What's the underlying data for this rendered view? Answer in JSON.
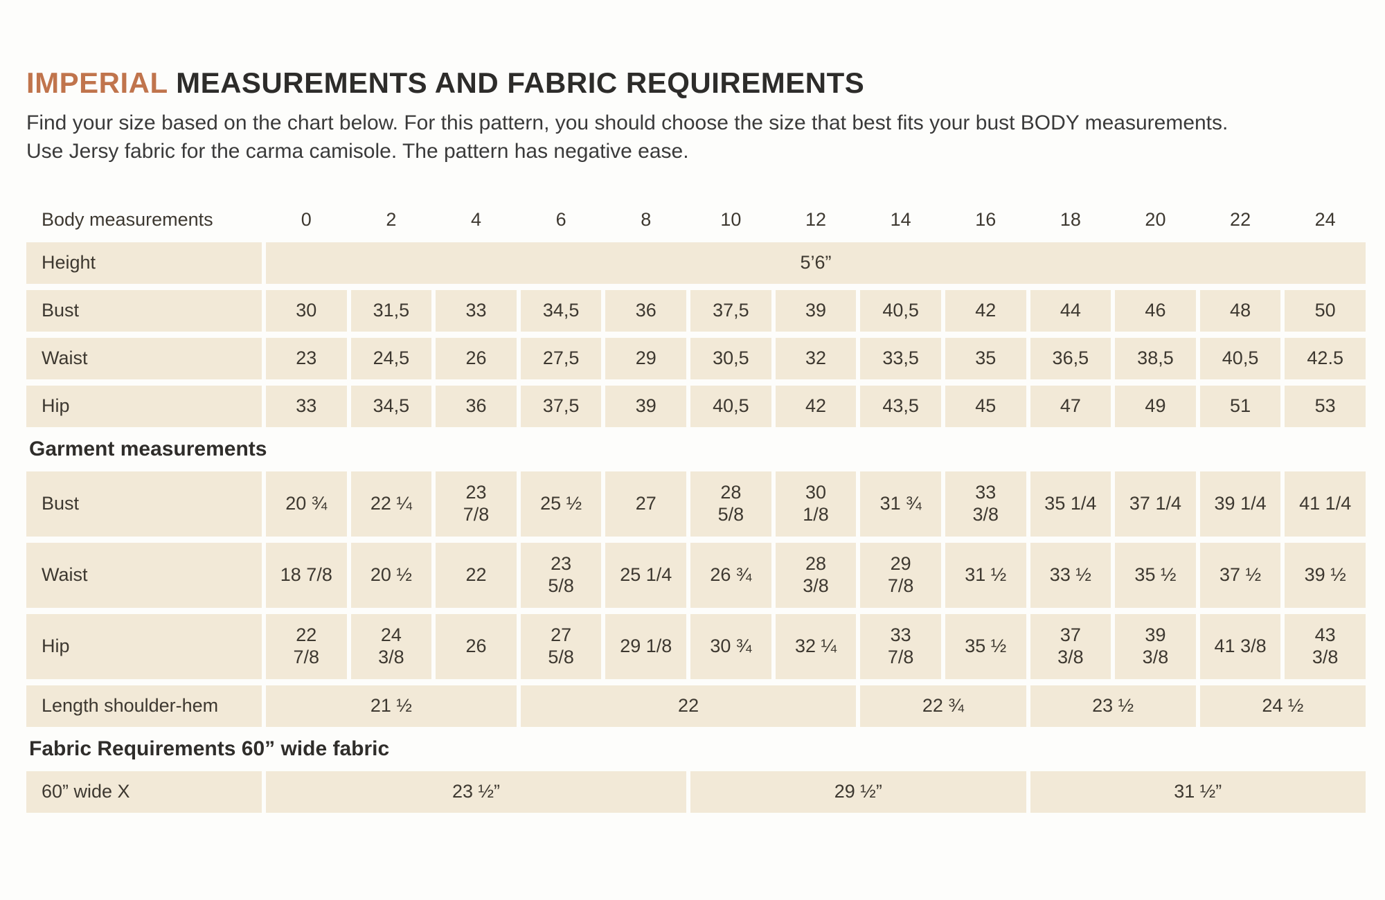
{
  "page": {
    "title_highlight": "IMPERIAL",
    "title_rest": " MEASUREMENTS AND FABRIC REQUIREMENTS",
    "subtitle_line1": "Find your size based on the chart below. For this pattern, you should choose the size that best fits your bust BODY measurements.",
    "subtitle_line2": "Use Jersy fabric for the carma camisole. The pattern has negative ease."
  },
  "colors": {
    "accent": "#c0744c",
    "cell_background": "#f2e9d7",
    "text": "#3d3830"
  },
  "table": {
    "header_label": "Body measurements",
    "sizes": [
      "0",
      "2",
      "4",
      "6",
      "8",
      "10",
      "12",
      "14",
      "16",
      "18",
      "20",
      "22",
      "24"
    ],
    "body_rows": [
      {
        "label": "Height",
        "span_value": "5’6”"
      },
      {
        "label": "Bust",
        "values": [
          "30",
          "31,5",
          "33",
          "34,5",
          "36",
          "37,5",
          "39",
          "40,5",
          "42",
          "44",
          "46",
          "48",
          "50"
        ]
      },
      {
        "label": "Waist",
        "values": [
          "23",
          "24,5",
          "26",
          "27,5",
          "29",
          "30,5",
          "32",
          "33,5",
          "35",
          "36,5",
          "38,5",
          "40,5",
          "42.5"
        ]
      },
      {
        "label": "Hip",
        "values": [
          "33",
          "34,5",
          "36",
          "37,5",
          "39",
          "40,5",
          "42",
          "43,5",
          "45",
          "47",
          "49",
          "51",
          "53"
        ]
      }
    ],
    "garment_heading": "Garment measurements",
    "garment_rows": [
      {
        "label": "Bust",
        "values": [
          "20 ¾",
          "22 ¼",
          "23\n7/8",
          "25 ½",
          "27",
          "28\n5/8",
          "30\n1/8",
          "31 ¾",
          "33\n3/8",
          "35 1/4",
          "37 1/4",
          "39 1/4",
          "41 1/4"
        ]
      },
      {
        "label": "Waist",
        "values": [
          "18 7/8",
          "20 ½",
          "22",
          "23\n5/8",
          "25 1/4",
          "26 ¾",
          "28\n3/8",
          "29\n7/8",
          "31 ½",
          "33 ½",
          "35 ½",
          "37 ½",
          "39 ½"
        ]
      },
      {
        "label": "Hip",
        "values": [
          "22\n7/8",
          "24\n3/8",
          "26",
          "27\n5/8",
          "29 1/8",
          "30 ¾",
          "32 ¼",
          "33\n7/8",
          "35 ½",
          "37\n3/8",
          "39\n3/8",
          "41 3/8",
          "43\n3/8"
        ]
      }
    ],
    "length_row": {
      "label": "Length shoulder-hem",
      "spans": [
        {
          "value": "21 ½",
          "cols": 3
        },
        {
          "value": "22",
          "cols": 4
        },
        {
          "value": "22 ¾",
          "cols": 2
        },
        {
          "value": "23 ½",
          "cols": 2
        },
        {
          "value": "24 ½",
          "cols": 2
        }
      ]
    },
    "fabric_heading": "Fabric Requirements 60” wide fabric",
    "fabric_row": {
      "label": "60” wide X",
      "spans": [
        {
          "value": "23 ½”",
          "cols": 5
        },
        {
          "value": "29 ½”",
          "cols": 4
        },
        {
          "value": "31 ½”",
          "cols": 4
        }
      ]
    }
  }
}
